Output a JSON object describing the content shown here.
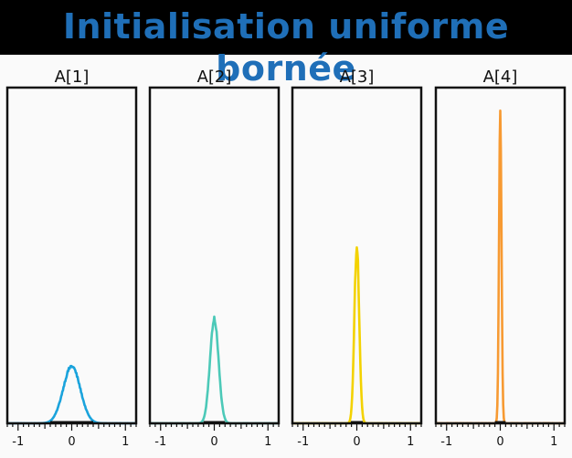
{
  "banner": {
    "title": "Initialisation uniforme bornée",
    "title_color": "#1f6fb8"
  },
  "chart_data": [
    {
      "type": "line",
      "title": "A[1]",
      "xlim": [
        -1.2,
        1.2
      ],
      "x_ticks": [
        -1,
        0,
        1
      ],
      "x_tick_labels": [
        "-1",
        "0",
        "1"
      ],
      "color": "#1aa3dc",
      "distribution": {
        "center": 0,
        "std": 0.16,
        "peak": 0.17
      },
      "ylim": [
        0,
        1
      ]
    },
    {
      "type": "line",
      "title": "A[2]",
      "xlim": [
        -1.2,
        1.2
      ],
      "x_ticks": [
        -1,
        0,
        1
      ],
      "x_tick_labels": [
        "-1",
        "0",
        "1"
      ],
      "color": "#4cc9b8",
      "distribution": {
        "center": 0,
        "std": 0.08,
        "peak": 0.31
      },
      "ylim": [
        0,
        1
      ]
    },
    {
      "type": "line",
      "title": "A[3]",
      "xlim": [
        -1.2,
        1.2
      ],
      "x_ticks": [
        -1,
        0,
        1
      ],
      "x_tick_labels": [
        "-1",
        "0",
        "1"
      ],
      "color": "#f3d200",
      "distribution": {
        "center": 0,
        "std": 0.045,
        "peak": 0.53
      },
      "ylim": [
        0,
        1
      ]
    },
    {
      "type": "line",
      "title": "A[4]",
      "xlim": [
        -1.2,
        1.2
      ],
      "x_ticks": [
        -1,
        0,
        1
      ],
      "x_tick_labels": [
        "-1",
        "0",
        "1"
      ],
      "color": "#f79a32",
      "distribution": {
        "center": 0,
        "std": 0.023,
        "peak": 0.92
      },
      "ylim": [
        0,
        1
      ]
    }
  ]
}
